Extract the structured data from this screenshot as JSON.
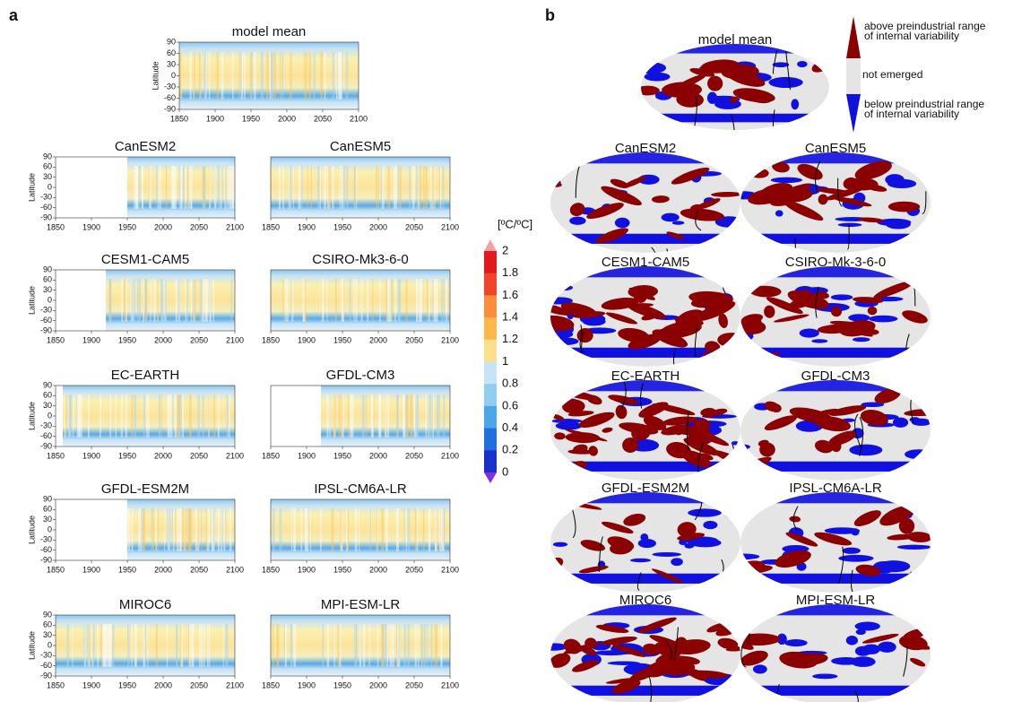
{
  "panel_a": {
    "label": "a",
    "model_mean_title": "model mean",
    "y_axis_label": "Latitude",
    "latitudes": [
      "90",
      "60",
      "30",
      "0",
      "-30",
      "-60",
      "-90"
    ],
    "years": [
      "1850",
      "1900",
      "1950",
      "2000",
      "2050",
      "2100"
    ],
    "models": [
      "CanESM2",
      "CanESM5",
      "CESM1-CAM5",
      "CSIRO-Mk3-6-0",
      "EC-EARTH",
      "GFDL-CM3",
      "GFDL-ESM2M",
      "IPSL-CM6A-LR",
      "MIROC6",
      "MPI-ESM-LR"
    ],
    "colorbar": {
      "unit": "[ºC/ºC]",
      "ticks": [
        "2",
        "1.8",
        "1.6",
        "1.4",
        "1.2",
        "1",
        "0.8",
        "0.6",
        "0.4",
        "0.2",
        "0"
      ]
    }
  },
  "panel_b": {
    "label": "b",
    "model_mean_title": "model mean",
    "models": [
      "CanESM2",
      "CanESM5",
      "CESM1-CAM5",
      "CSIRO-Mk-3-6-0",
      "EC-EARTH",
      "GFDL-CM3",
      "GFDL-ESM2M",
      "IPSL-CM6A-LR",
      "MIROC6",
      "MPI-ESM-LR"
    ],
    "legend": {
      "above": [
        "above preindustrial range",
        "of internal variability"
      ],
      "not_emerged": "not emerged",
      "below": [
        "below preindustrial range",
        "of internal variability"
      ]
    }
  }
}
